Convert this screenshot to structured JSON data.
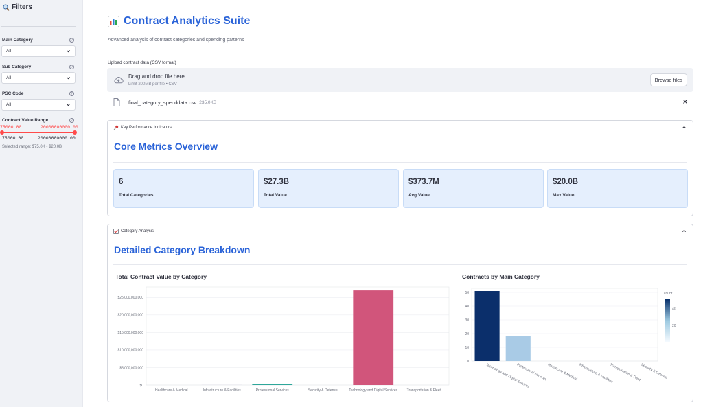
{
  "sidebar": {
    "title": "Filters",
    "filters": [
      {
        "label": "Main Category",
        "value": "All"
      },
      {
        "label": "Sub Category",
        "value": "All"
      },
      {
        "label": "PSC Code",
        "value": "All"
      }
    ],
    "range": {
      "label": "Contract Value Range",
      "min_label": "75000.00",
      "max_label": "20000000000.00",
      "min_value": "75000.00",
      "max_value": "20000000000.00",
      "note": "Selected range: $75.0K - $20.0B"
    }
  },
  "header": {
    "title": "Contract Analytics Suite",
    "subtitle": "Advanced analysis of contract categories and spending patterns"
  },
  "upload": {
    "label": "Upload contract data (CSV format)",
    "drop_text": "Drag and drop file here",
    "limit_text": "Limit 200MB per file • CSV",
    "browse_label": "Browse files",
    "file_name": "final_category_spenddata.csv",
    "file_size": "235.0KB"
  },
  "kpi": {
    "header": "Key Performance Indicators",
    "title": "Core Metrics Overview",
    "metrics": [
      {
        "value": "6",
        "label": "Total Categories"
      },
      {
        "value": "$27.3B",
        "label": "Total Value"
      },
      {
        "value": "$373.7M",
        "label": "Avg Value"
      },
      {
        "value": "$20.0B",
        "label": "Max Value"
      }
    ]
  },
  "category": {
    "header": "Category Analysis",
    "title": "Detailed Category Breakdown"
  },
  "colors": {
    "accent": "#2a63d8",
    "slider": "#ff4b4b",
    "bar_pink": "#d1557b",
    "bar_teal": "#2ea79a",
    "bar_navy": "#0b2f6b",
    "bar_light": "#a9cbe6"
  },
  "chart_data": [
    {
      "type": "bar",
      "title": "Total Contract Value by Category",
      "categories": [
        "Healthcare & Medical",
        "Infrastructure & Facilities",
        "Professional Services",
        "Security & Defense",
        "Technology and Digital Services",
        "Transportation & Fleet"
      ],
      "values": [
        0,
        10000000,
        280000000,
        0,
        27000000000,
        0
      ],
      "colors": [
        "#e8b04a",
        "#8a7ab8",
        "#2ea79a",
        "#5b8ad6",
        "#d1557b",
        "#7fb069"
      ],
      "ylim": [
        0,
        28000000000
      ],
      "yticks": [
        0,
        5000000000,
        10000000000,
        15000000000,
        20000000000,
        25000000000
      ],
      "ytick_labels": [
        "$0",
        "$5,000,000,000",
        "$10,000,000,000",
        "$15,000,000,000",
        "$20,000,000,000",
        "$25,000,000,000"
      ]
    },
    {
      "type": "bar",
      "title": "Contracts by Main Category",
      "categories": [
        "Technology and Digital Services",
        "Professional Services",
        "Healthcare & Medical",
        "Infrastructure & Facilities",
        "Transportation & Fleet",
        "Security & Defense"
      ],
      "values": [
        51,
        18,
        0,
        0,
        0,
        0
      ],
      "ylim": [
        0,
        53
      ],
      "yticks": [
        0,
        10,
        20,
        30,
        40,
        50
      ],
      "colorbar": {
        "title": "count",
        "ticks": [
          20,
          40
        ]
      }
    }
  ]
}
